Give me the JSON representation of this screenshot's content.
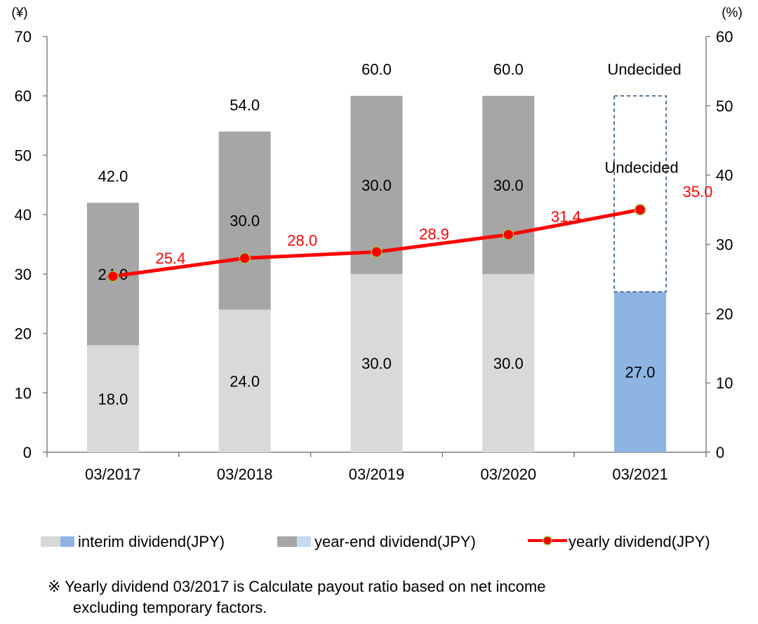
{
  "chart_data": {
    "type": "bar",
    "stacked": true,
    "categories": [
      "03/2017",
      "03/2018",
      "03/2019",
      "03/2020",
      "03/2021"
    ],
    "series": [
      {
        "name": "interim dividend(JPY)",
        "values": [
          18.0,
          24.0,
          30.0,
          30.0,
          27.0
        ],
        "labels": [
          "18.0",
          "24.0",
          "30.0",
          "30.0",
          "27.0"
        ]
      },
      {
        "name": "year-end dividend(JPY)",
        "values": [
          24.0,
          30.0,
          30.0,
          30.0,
          null
        ],
        "labels": [
          "24.0",
          "30.0",
          "30.0",
          "30.0",
          "Undecided"
        ]
      },
      {
        "name": "yearly dividend(JPY)",
        "type": "line",
        "axis": "right",
        "values": [
          25.4,
          28.0,
          28.9,
          31.4,
          35.0
        ],
        "labels": [
          "25.4",
          "28.0",
          "28.9",
          "31.4",
          "35.0"
        ]
      }
    ],
    "totals": [
      "42.0",
      "54.0",
      "60.0",
      "60.0",
      "Undecided"
    ],
    "left_axis": {
      "unit": "(¥)",
      "min": 0,
      "max": 70,
      "step": 10
    },
    "right_axis": {
      "unit": "(%)",
      "min": 0,
      "max": 60,
      "step": 10
    },
    "undecided_outline_top": 60,
    "grid": false,
    "legend_position": "bottom",
    "colors": {
      "interim": "#d9d9d9",
      "interim_forecast": "#8db4e2",
      "year_end": "#a6a6a6",
      "year_end_forecast": "#c5d9f1",
      "line": "#ff0000",
      "marker_edge": "#92d050",
      "label_red": "#ff0000",
      "outline": "#1f4e79"
    }
  },
  "note": {
    "symbol": "※",
    "line1": "Yearly dividend 03/2017 is Calculate payout ratio based on net income",
    "line2": "excluding temporary factors."
  }
}
